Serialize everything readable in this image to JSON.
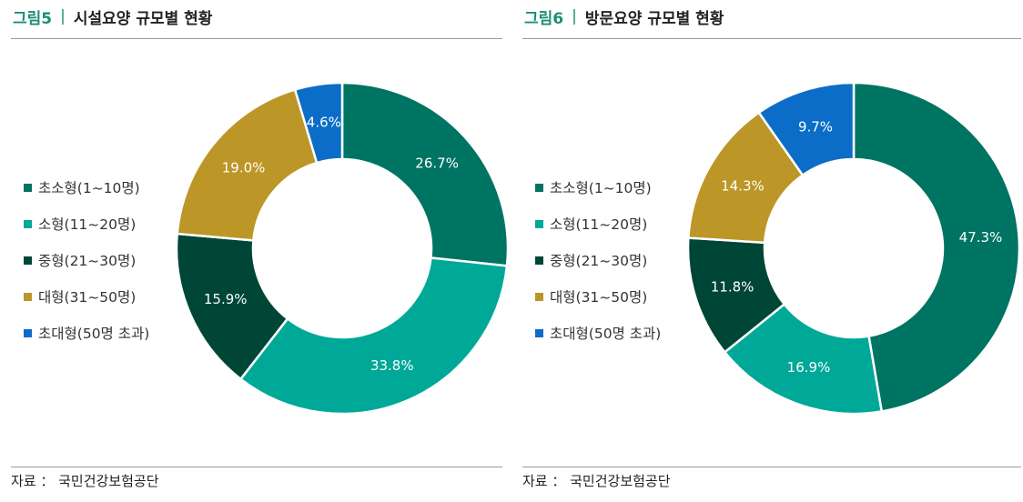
{
  "charts": [
    {
      "figure_number": "그림5",
      "separator": "|",
      "title": "시설요양 규모별 현황",
      "source": "자료 ： 국민건강보험공단"
    },
    {
      "figure_number": "그림6",
      "separator": "|",
      "title": "방문요양 규모별 현황",
      "source": "자료 ： 국민건강보험공단"
    }
  ],
  "chart_data": [
    {
      "type": "pie",
      "donut": true,
      "title": "시설요양 규모별 현황",
      "categories": [
        "초소형(1~10명)",
        "소형(11~20명)",
        "중형(21~30명)",
        "대형(31~50명)",
        "초대형(50명 초과)"
      ],
      "values": [
        26.7,
        33.8,
        15.9,
        19.0,
        4.6
      ],
      "labels": [
        "26.7%",
        "33.8%",
        "15.9%",
        "19.0%",
        "4.6%"
      ],
      "colors": [
        "#007462",
        "#00a898",
        "#004637",
        "#bc9626",
        "#0b6dc7"
      ],
      "legend_position": "left"
    },
    {
      "type": "pie",
      "donut": true,
      "title": "방문요양 규모별 현황",
      "categories": [
        "초소형(1~10명)",
        "소형(11~20명)",
        "중형(21~30명)",
        "대형(31~50명)",
        "초대형(50명 초과)"
      ],
      "values": [
        47.3,
        16.9,
        11.8,
        14.3,
        9.7
      ],
      "labels": [
        "47.3%",
        "16.9%",
        "11.8%",
        "14.3%",
        "9.7%"
      ],
      "colors": [
        "#007462",
        "#00a898",
        "#004637",
        "#bc9626",
        "#0b6dc7"
      ],
      "legend_position": "left"
    }
  ]
}
